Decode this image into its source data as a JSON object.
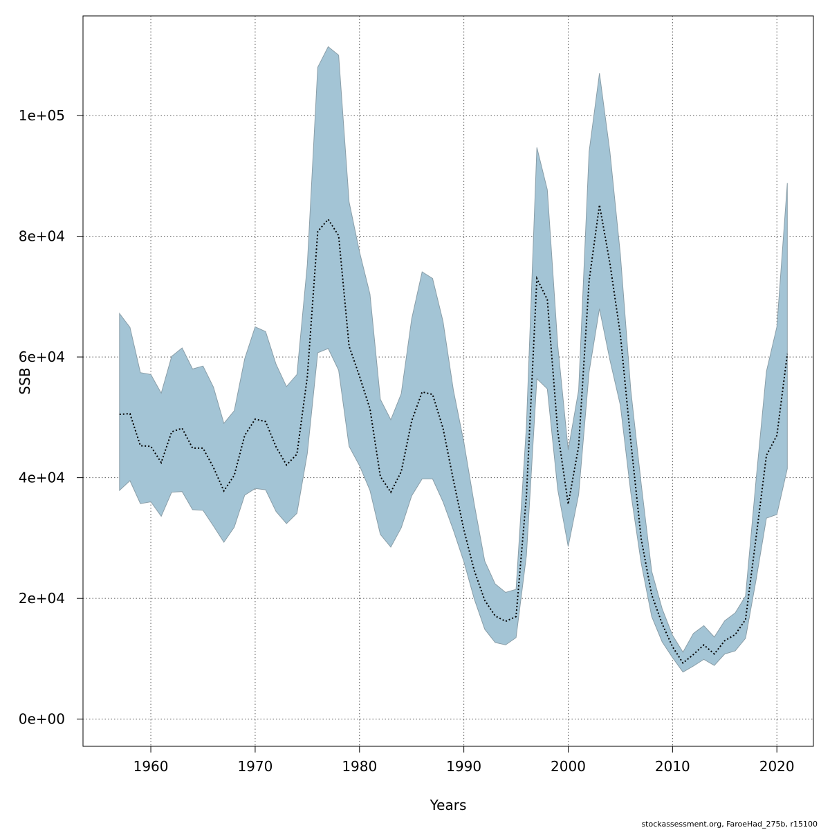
{
  "footer": "stockassessment.org, FaroeHad_275b, r15100",
  "chart_data": {
    "type": "area",
    "xlabel": "Years",
    "ylabel": "SSB",
    "xlim": [
      1953.5,
      2023.5
    ],
    "ylim": [
      -4500,
      116500
    ],
    "xticks": [
      1960,
      1970,
      1980,
      1990,
      2000,
      2010,
      2020
    ],
    "xtick_labels": [
      "1960",
      "1970",
      "1980",
      "1990",
      "2000",
      "2010",
      "2020"
    ],
    "yticks": [
      0,
      20000,
      40000,
      60000,
      80000,
      100000
    ],
    "ytick_labels": [
      "0e+00",
      "2e+04",
      "4e+04",
      "6e+04",
      "8e+04",
      "1e+05"
    ],
    "grid": true,
    "colors": {
      "band_fill": "#a3c4d5",
      "band_stroke": "#8a9ea8",
      "line": "#000000",
      "grid": "#555555"
    },
    "x": [
      1957,
      1958,
      1959,
      1960,
      1961,
      1962,
      1963,
      1964,
      1965,
      1966,
      1967,
      1968,
      1969,
      1970,
      1971,
      1972,
      1973,
      1974,
      1975,
      1976,
      1977,
      1978,
      1979,
      1980,
      1981,
      1982,
      1983,
      1984,
      1985,
      1986,
      1987,
      1988,
      1989,
      1990,
      1991,
      1992,
      1993,
      1994,
      1995,
      1996,
      1997,
      1998,
      1999,
      2000,
      2001,
      2002,
      2003,
      2004,
      2005,
      2006,
      2007,
      2008,
      2009,
      2010,
      2011,
      2012,
      2013,
      2014,
      2015,
      2016,
      2017,
      2018,
      2019,
      2020,
      2021
    ],
    "series": [
      {
        "role": "estimate",
        "style": "dotted",
        "values": [
          50500,
          50600,
          45300,
          45200,
          42500,
          47600,
          48200,
          44900,
          44900,
          41700,
          37800,
          40400,
          47000,
          49700,
          49300,
          45100,
          42100,
          43900,
          56700,
          80800,
          82800,
          80100,
          61800,
          56800,
          51400,
          40200,
          37600,
          41000,
          49400,
          54200,
          53800,
          48200,
          39600,
          31400,
          24600,
          19700,
          17100,
          16200,
          17000,
          37000,
          73000,
          69500,
          47600,
          35600,
          45200,
          72600,
          85200,
          75500,
          63700,
          46000,
          29800,
          20600,
          15800,
          12000,
          9300,
          10700,
          12300,
          10800,
          13000,
          14000,
          16500,
          30000,
          43700,
          47000,
          60500
        ]
      },
      {
        "role": "upper",
        "values": [
          67200,
          64900,
          57400,
          57100,
          54000,
          60100,
          61500,
          58000,
          58500,
          55000,
          49000,
          51100,
          59700,
          65000,
          64200,
          58800,
          55100,
          57100,
          75300,
          108000,
          111400,
          110000,
          85700,
          77400,
          70400,
          53000,
          49600,
          53900,
          66300,
          74100,
          73000,
          65900,
          54500,
          45900,
          35600,
          26200,
          22400,
          21000,
          21500,
          48600,
          94700,
          87700,
          61900,
          44600,
          54500,
          94000,
          107000,
          94000,
          77000,
          54500,
          38900,
          24500,
          18300,
          13900,
          11100,
          14200,
          15500,
          13600,
          16300,
          17600,
          20400,
          39500,
          57600,
          65000,
          88800
        ]
      },
      {
        "role": "lower",
        "values": [
          37900,
          39500,
          35700,
          36000,
          33600,
          37600,
          37700,
          34700,
          34600,
          32000,
          29300,
          31800,
          37100,
          38200,
          38000,
          34400,
          32400,
          34100,
          44000,
          60700,
          61400,
          57800,
          45200,
          42000,
          37900,
          30600,
          28500,
          31700,
          37000,
          39800,
          39800,
          36000,
          31300,
          26100,
          19900,
          14900,
          12700,
          12300,
          13500,
          27100,
          56400,
          54700,
          38000,
          28600,
          37200,
          57500,
          68000,
          59500,
          52000,
          37500,
          25800,
          17000,
          12800,
          10200,
          7800,
          8800,
          9900,
          8900,
          10800,
          11300,
          13400,
          23000,
          33300,
          33900,
          41500
        ]
      }
    ]
  }
}
